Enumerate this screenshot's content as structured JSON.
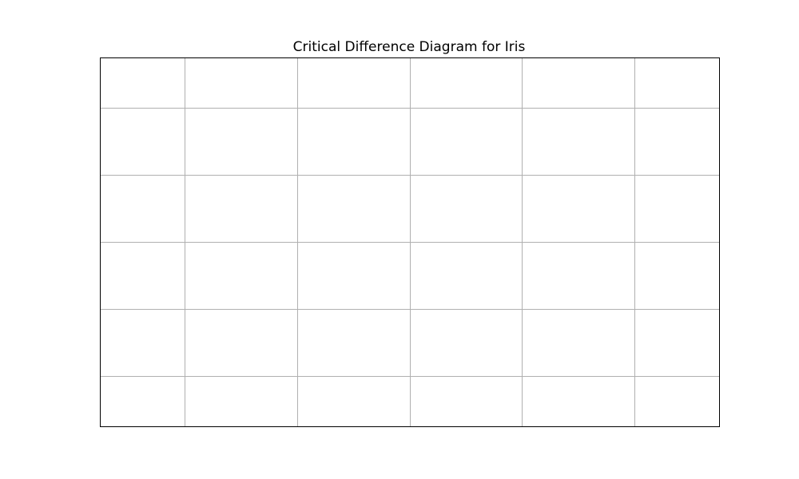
{
  "chart_data": {
    "type": "scatter",
    "title": "Critical Difference Diagram for Iris",
    "xlabel": "",
    "ylabel": "",
    "series": [],
    "grid": true,
    "axes_visible": false,
    "grid_color": "#b0b0b0",
    "frame_color": "#000000"
  }
}
